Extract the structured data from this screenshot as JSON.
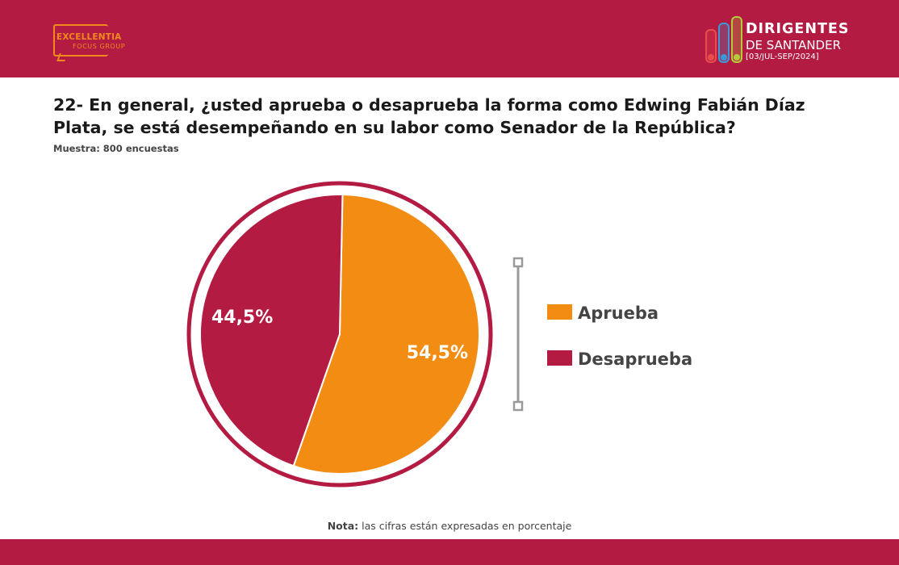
{
  "header": {
    "left_logo": {
      "brand": "EXCELLENTIA",
      "sub": "FOCUS GROUP",
      "color": "#f08a1c"
    },
    "right_logo": {
      "title": "DIRIGENTES",
      "subtitle": "DE SANTANDER",
      "period": "[03/JUL-SEP/2024]",
      "bar_colors": [
        "#e84c4c",
        "#3a9ad9",
        "#b4cc3a"
      ]
    },
    "bar_color": "#b31b43"
  },
  "question": "22- En general, ¿usted aprueba o desaprueba la forma como Edwing Fabián Díaz Plata, se está desempeñando en su labor como Senador de la República?",
  "sample": "Muestra: 800 encuestas",
  "chart_data": {
    "type": "pie",
    "categories": [
      "Aprueba",
      "Desaprueba"
    ],
    "values": [
      54.5,
      44.5
    ],
    "value_labels": [
      "54,5%",
      "44,5%"
    ],
    "colors": [
      "#f28c12",
      "#b31b43"
    ],
    "legend_placement": "right"
  },
  "note": {
    "label": "Nota:",
    "text": "las cifras están expresadas en porcentaje"
  }
}
